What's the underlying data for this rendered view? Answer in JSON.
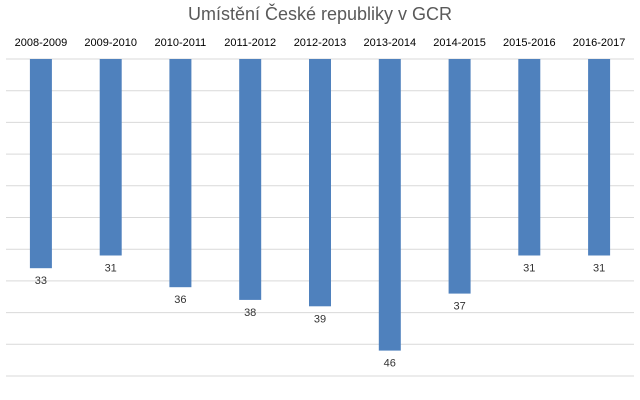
{
  "chart_data": {
    "type": "bar",
    "title": "Umístění České republiky v GCR",
    "xlabel": "",
    "ylabel": "",
    "categories": [
      "2008-2009",
      "2009-2010",
      "2010-2011",
      "2011-2012",
      "2012-2013",
      "2013-2014",
      "2014-2015",
      "2015-2016",
      "2016-2017"
    ],
    "values": [
      33,
      31,
      36,
      38,
      39,
      46,
      37,
      31,
      31
    ],
    "y_axis_reversed": true,
    "category_labels_position": "top",
    "ylim": [
      0,
      50
    ],
    "grid": true,
    "legend": "none",
    "colors": {
      "bar": "#4f81bd",
      "grid": "#d9d9d9"
    }
  }
}
